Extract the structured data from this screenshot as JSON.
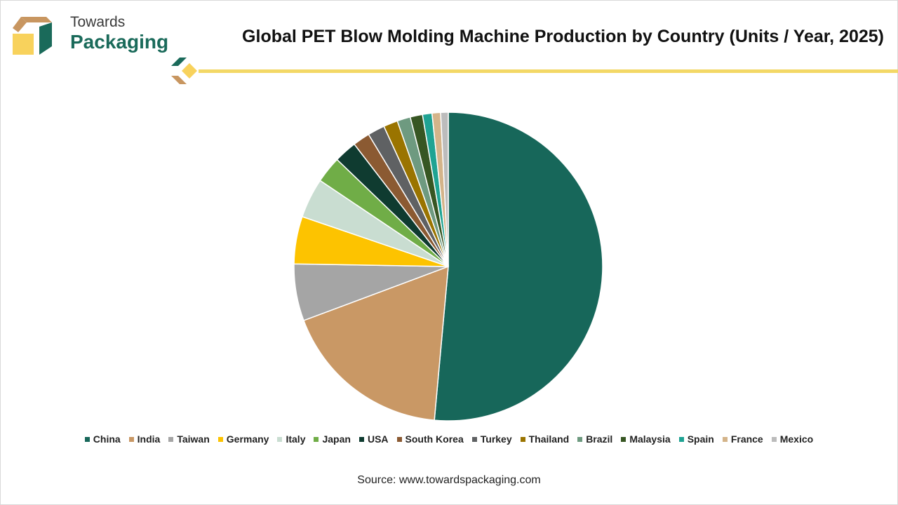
{
  "brand": {
    "line1": "Towards",
    "line2": "Packaging"
  },
  "title": "Global PET Blow Molding Machine Production by Country (Units / Year, 2025)",
  "source": "Source: www.towardspackaging.com",
  "colors": {
    "accent_line": "#f3d866",
    "brand_green": "#1a6a5a",
    "brand_tan": "#c89660"
  },
  "chart_data": {
    "type": "pie",
    "title": "Global PET Blow Molding Machine Production by Country (Units / Year, 2025)",
    "legend_position": "bottom",
    "start_angle": "12 o'clock, clockwise",
    "slices": [
      {
        "label": "China",
        "value": 51.8,
        "color": "#17675a"
      },
      {
        "label": "India",
        "value": 18.0,
        "color": "#c99865"
      },
      {
        "label": "Taiwan",
        "value": 6.0,
        "color": "#a5a5a5"
      },
      {
        "label": "Germany",
        "value": 5.0,
        "color": "#fdc300"
      },
      {
        "label": "Italy",
        "value": 4.2,
        "color": "#c9ddd1"
      },
      {
        "label": "Japan",
        "value": 2.8,
        "color": "#70ad47"
      },
      {
        "label": "USA",
        "value": 2.4,
        "color": "#0f3b30"
      },
      {
        "label": "South Korea",
        "value": 1.8,
        "color": "#8b5a32"
      },
      {
        "label": "Turkey",
        "value": 1.8,
        "color": "#5f6163"
      },
      {
        "label": "Thailand",
        "value": 1.5,
        "color": "#9a7400"
      },
      {
        "label": "Brazil",
        "value": 1.4,
        "color": "#6e9a80"
      },
      {
        "label": "Malaysia",
        "value": 1.3,
        "color": "#375623"
      },
      {
        "label": "Spain",
        "value": 1.0,
        "color": "#1fa393"
      },
      {
        "label": "France",
        "value": 0.9,
        "color": "#d4b48a"
      },
      {
        "label": "Mexico",
        "value": 0.8,
        "color": "#bcbcbc"
      }
    ]
  }
}
